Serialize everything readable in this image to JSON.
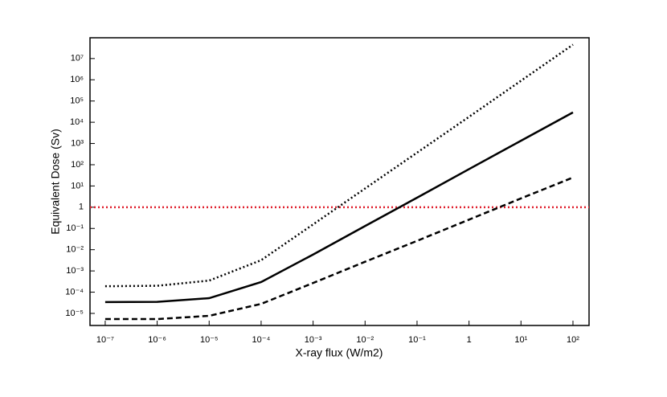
{
  "chart_data": {
    "type": "line",
    "xlabel": "X-ray flux (W/m2)",
    "ylabel": "Equivalent Dose (Sv)",
    "xscale": "log",
    "yscale": "log",
    "x": [
      1e-07,
      1e-06,
      1e-05,
      0.0001,
      0.001,
      0.01,
      0.1,
      1,
      10,
      100
    ],
    "series": [
      {
        "color": "#000000",
        "style": "solid",
        "values": [
          3.4e-05,
          3.5e-05,
          5.2e-05,
          0.0003,
          0.0059,
          0.13,
          2.8,
          62,
          1350,
          29000
        ]
      },
      {
        "color": "#000000",
        "style": "dotted",
        "values": [
          0.00019,
          0.0002,
          0.00035,
          0.0032,
          0.155,
          7.6,
          370,
          18000,
          900000,
          45000000
        ]
      },
      {
        "color": "#000000",
        "style": "dashed",
        "values": [
          5.4e-06,
          5.4e-06,
          7.7e-06,
          2.8e-05,
          0.00027,
          0.0027,
          0.026,
          0.26,
          2.6,
          25
        ]
      }
    ],
    "hline": {
      "y": 1,
      "color": "#e0202e",
      "style": "dotted"
    },
    "xlim": [
      5.1e-08,
      204
    ],
    "ylim": [
      2.7e-06,
      95000000.0
    ],
    "xticks": [
      {
        "value": 1e-07,
        "label": "10⁻⁷"
      },
      {
        "value": 1e-06,
        "label": "10⁻⁶"
      },
      {
        "value": 1e-05,
        "label": "10⁻⁵"
      },
      {
        "value": 0.0001,
        "label": "10⁻⁴"
      },
      {
        "value": 0.001,
        "label": "10⁻³"
      },
      {
        "value": 0.01,
        "label": "10⁻²"
      },
      {
        "value": 0.1,
        "label": "10⁻¹"
      },
      1,
      {
        "value": 10,
        "label": "10¹"
      },
      {
        "value": 100,
        "label": "10²"
      }
    ],
    "yticks": [
      {
        "value": 1e-05,
        "label": "10⁻⁵"
      },
      {
        "value": 0.0001,
        "label": "10⁻⁴"
      },
      {
        "value": 0.001,
        "label": "10⁻³"
      },
      {
        "value": 0.01,
        "label": "10⁻²"
      },
      {
        "value": 0.1,
        "label": "10⁻¹"
      },
      1,
      {
        "value": 10,
        "label": "10¹"
      },
      {
        "value": 100,
        "label": "10²"
      },
      {
        "value": 1000,
        "label": "10³"
      },
      {
        "value": 10000,
        "label": "10⁴"
      },
      {
        "value": 100000,
        "label": "10⁵"
      },
      {
        "value": 1000000,
        "label": "10⁶"
      },
      {
        "value": 10000000,
        "label": "10⁷"
      }
    ]
  }
}
